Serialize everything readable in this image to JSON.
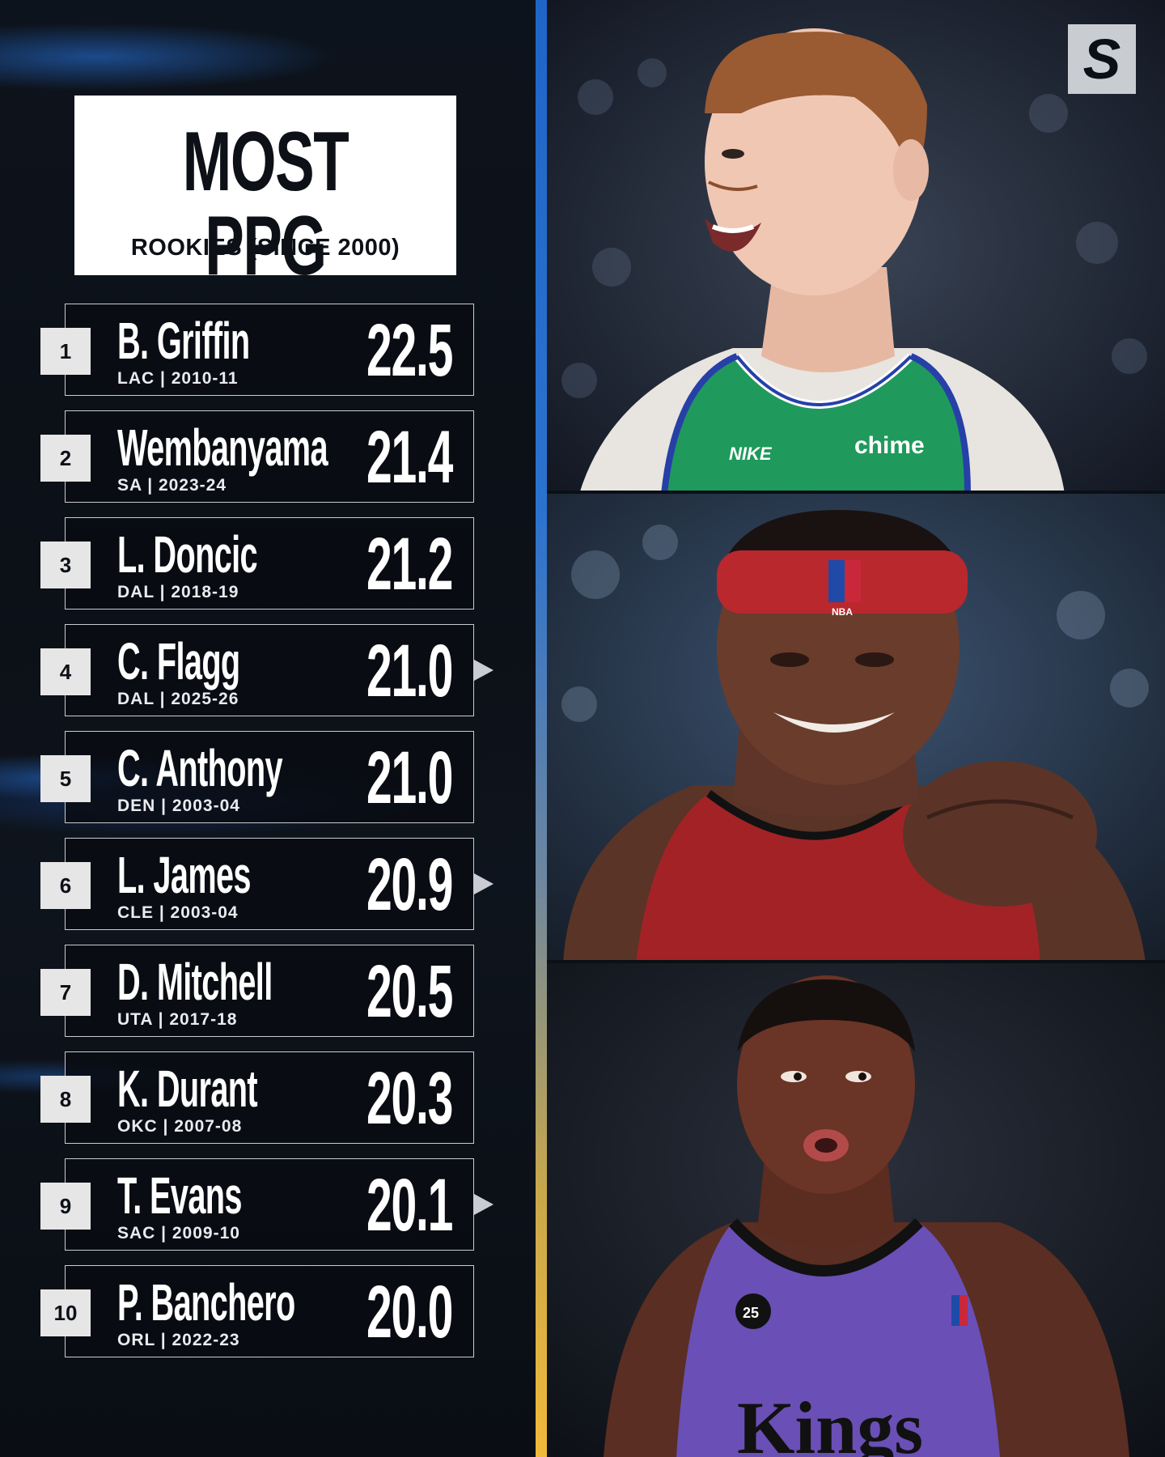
{
  "title": {
    "main": "MOST PPG",
    "sub": "ROOKIES (SINCE 2000)"
  },
  "logo": {
    "letter": "S"
  },
  "players": [
    {
      "rank": "1",
      "name": "B. Griffin",
      "meta": "LAC | 2010-11",
      "ppg": "22.5",
      "pointer": false
    },
    {
      "rank": "2",
      "name": "Wembanyama",
      "meta": "SA | 2023-24",
      "ppg": "21.4",
      "pointer": false
    },
    {
      "rank": "3",
      "name": "L. Doncic",
      "meta": "DAL | 2018-19",
      "ppg": "21.2",
      "pointer": false
    },
    {
      "rank": "4",
      "name": "C. Flagg",
      "meta": "DAL | 2025-26",
      "ppg": "21.0",
      "pointer": true
    },
    {
      "rank": "5",
      "name": "C. Anthony",
      "meta": "DEN | 2003-04",
      "ppg": "21.0",
      "pointer": false
    },
    {
      "rank": "6",
      "name": "L. James",
      "meta": "CLE | 2003-04",
      "ppg": "20.9",
      "pointer": true
    },
    {
      "rank": "7",
      "name": "D. Mitchell",
      "meta": "UTA | 2017-18",
      "ppg": "20.5",
      "pointer": false
    },
    {
      "rank": "8",
      "name": "K. Durant",
      "meta": "OKC | 2007-08",
      "ppg": "20.3",
      "pointer": false
    },
    {
      "rank": "9",
      "name": "T. Evans",
      "meta": "SAC | 2009-10",
      "ppg": "20.1",
      "pointer": true
    },
    {
      "rank": "10",
      "name": "P. Banchero",
      "meta": "ORL | 2022-23",
      "ppg": "20.0",
      "pointer": false
    }
  ],
  "photos": [
    {
      "jersey_text": "chime",
      "brand": "NIKE"
    },
    {
      "jersey_text": "NBA"
    },
    {
      "jersey_text": "Kings",
      "badge": "25"
    }
  ],
  "colors": {
    "dallas_green": "#1f9a5c",
    "miami_red": "#a32226",
    "kings_purple": "#6a4fb6",
    "divider_blue": "#1f65c8",
    "divider_gold": "#f0b93a"
  }
}
